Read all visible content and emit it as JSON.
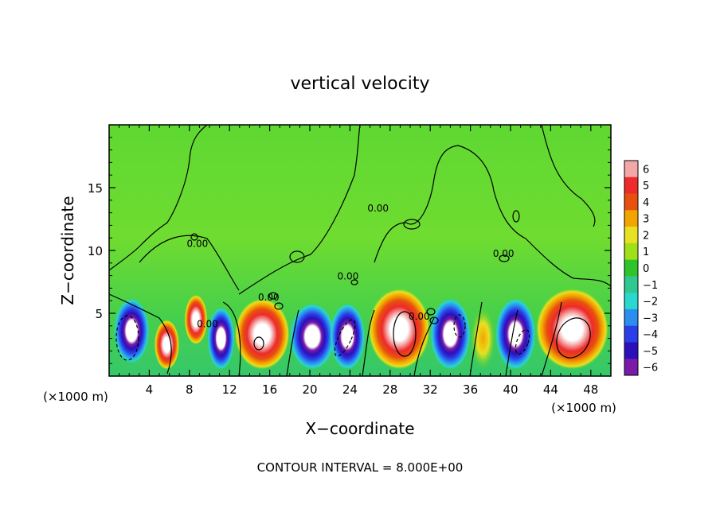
{
  "chart_data": {
    "type": "heatmap",
    "title": "vertical velocity",
    "xlabel": "X−coordinate",
    "ylabel": "Z−coordinate",
    "x_unit_left": "(×1000 m)",
    "x_unit_right": "(×1000 m)",
    "xlim": [
      0,
      50
    ],
    "ylim": [
      0,
      20
    ],
    "x_ticks": [
      4,
      8,
      12,
      16,
      20,
      24,
      28,
      32,
      36,
      40,
      44,
      48
    ],
    "y_ticks": [
      5,
      10,
      15
    ],
    "footer": "CONTOUR INTERVAL = 8.000E+00",
    "contour_labels": [
      {
        "text": "0.00",
        "x": 26.8,
        "y": 13.1
      },
      {
        "text": "0.00",
        "x": 8.8,
        "y": 10.3
      },
      {
        "text": "0.00",
        "x": 39.3,
        "y": 9.5
      },
      {
        "text": "0.00",
        "x": 23.8,
        "y": 7.7
      },
      {
        "text": "0.00",
        "x": 9.8,
        "y": 3.9
      },
      {
        "text": "0.00",
        "x": 15.9,
        "y": 6.0
      },
      {
        "text": "0.00",
        "x": 30.9,
        "y": 4.5
      }
    ],
    "colorbar": {
      "values": [
        6,
        5,
        4,
        3,
        2,
        1,
        0,
        -1,
        -2,
        -3,
        -4,
        -5,
        -6
      ],
      "labels": [
        "6",
        "5",
        "4",
        "3",
        "2",
        "1",
        "0",
        "−1",
        "−2",
        "−3",
        "−4",
        "−5",
        "−6"
      ],
      "colors": [
        "#f4a7a7",
        "#ee2a2a",
        "#e85010",
        "#f2a500",
        "#e8e022",
        "#9fe01a",
        "#2fc52a",
        "#2fc890",
        "#2ad8d0",
        "#2a8ef0",
        "#2a3ee8",
        "#2a10b8",
        "#7a1aa8"
      ]
    },
    "cells": [
      {
        "x0": 0.5,
        "x1": 4.0,
        "y0": 1.0,
        "y1": 6.2,
        "v": -6
      },
      {
        "x0": 4.5,
        "x1": 7.0,
        "y0": 0.5,
        "y1": 4.5,
        "v": 6
      },
      {
        "x0": 7.5,
        "x1": 9.8,
        "y0": 2.5,
        "y1": 6.5,
        "v": 6
      },
      {
        "x0": 9.8,
        "x1": 12.5,
        "y0": 0.5,
        "y1": 5.5,
        "v": -6
      },
      {
        "x0": 12.5,
        "x1": 18.0,
        "y0": 0.5,
        "y1": 6.2,
        "v": 6
      },
      {
        "x0": 18.0,
        "x1": 22.5,
        "y0": 0.5,
        "y1": 5.8,
        "v": -6
      },
      {
        "x0": 22.0,
        "x1": 25.5,
        "y0": 0.5,
        "y1": 5.8,
        "v": -6
      },
      {
        "x0": 25.8,
        "x1": 32.0,
        "y0": 0.5,
        "y1": 7.0,
        "v": 6
      },
      {
        "x0": 32.0,
        "x1": 36.0,
        "y0": 0.5,
        "y1": 6.2,
        "v": -6
      },
      {
        "x0": 36.0,
        "x1": 38.5,
        "y0": 0.5,
        "y1": 5.5,
        "v": 4
      },
      {
        "x0": 38.5,
        "x1": 42.5,
        "y0": 0.5,
        "y1": 6.2,
        "v": -6
      },
      {
        "x0": 42.5,
        "x1": 49.8,
        "y0": 0.5,
        "y1": 7.0,
        "v": 6
      }
    ]
  }
}
